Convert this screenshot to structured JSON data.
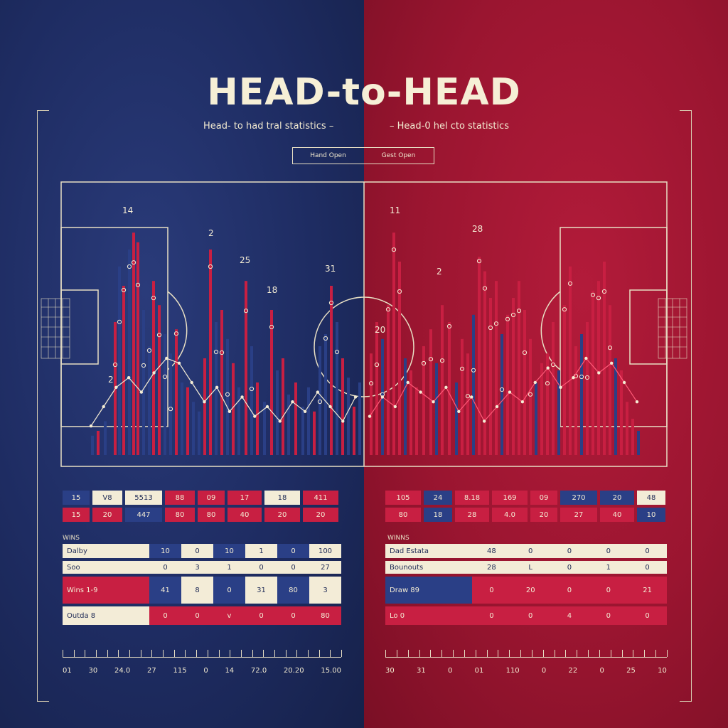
{
  "title": "HEAD-to-HEAD",
  "subtitle_left": "Head- to had tral statistics  –",
  "subtitle_right": "–  Head-0 hel cto statistics",
  "toggle": [
    "Hand Open",
    "Gest Open"
  ],
  "colors": {
    "blue": "#2a3f86",
    "red": "#c81f42",
    "cream": "#f3ecd7",
    "line": "#e8dfc4"
  },
  "chart_data": {
    "type": "bar",
    "title": "",
    "series": [
      {
        "name": "",
        "color": "#2a3f86"
      },
      {
        "name": "",
        "color": "#c81f42"
      }
    ],
    "labels_left": [
      "14",
      "2",
      "25",
      "18",
      "31",
      "2"
    ],
    "labels_right": [
      "11",
      "28",
      "2",
      "20"
    ],
    "left_bars": [
      {
        "x": 128,
        "h": 0.08,
        "c": "blue"
      },
      {
        "x": 136,
        "h": 0.1,
        "c": "red"
      },
      {
        "x": 146,
        "h": 0.14,
        "c": "blue"
      },
      {
        "x": 160,
        "h": 0.55,
        "c": "red"
      },
      {
        "x": 166,
        "h": 0.78,
        "c": "blue"
      },
      {
        "x": 172,
        "h": 0.7,
        "c": "red"
      },
      {
        "x": 180,
        "h": 0.85,
        "c": "blue"
      },
      {
        "x": 186,
        "h": 0.92,
        "c": "red"
      },
      {
        "x": 192,
        "h": 0.88,
        "c": "red"
      },
      {
        "x": 200,
        "h": 0.6,
        "c": "blue"
      },
      {
        "x": 208,
        "h": 0.45,
        "c": "blue"
      },
      {
        "x": 214,
        "h": 0.72,
        "c": "red"
      },
      {
        "x": 222,
        "h": 0.62,
        "c": "red"
      },
      {
        "x": 230,
        "h": 0.5,
        "c": "blue"
      },
      {
        "x": 238,
        "h": 0.42,
        "c": "blue"
      },
      {
        "x": 246,
        "h": 0.52,
        "c": "red"
      },
      {
        "x": 254,
        "h": 0.3,
        "c": "blue"
      },
      {
        "x": 262,
        "h": 0.28,
        "c": "red"
      },
      {
        "x": 270,
        "h": 0.22,
        "c": "blue"
      },
      {
        "x": 278,
        "h": 0.18,
        "c": "blue"
      },
      {
        "x": 286,
        "h": 0.4,
        "c": "red"
      },
      {
        "x": 294,
        "h": 0.85,
        "c": "red"
      },
      {
        "x": 302,
        "h": 0.55,
        "c": "blue"
      },
      {
        "x": 310,
        "h": 0.6,
        "c": "red"
      },
      {
        "x": 318,
        "h": 0.48,
        "c": "blue"
      },
      {
        "x": 326,
        "h": 0.38,
        "c": "red"
      },
      {
        "x": 334,
        "h": 0.28,
        "c": "blue"
      },
      {
        "x": 344,
        "h": 0.72,
        "c": "red"
      },
      {
        "x": 352,
        "h": 0.45,
        "c": "blue"
      },
      {
        "x": 360,
        "h": 0.3,
        "c": "red"
      },
      {
        "x": 370,
        "h": 0.22,
        "c": "blue"
      },
      {
        "x": 380,
        "h": 0.6,
        "c": "red"
      },
      {
        "x": 388,
        "h": 0.35,
        "c": "blue"
      },
      {
        "x": 396,
        "h": 0.4,
        "c": "red"
      },
      {
        "x": 404,
        "h": 0.25,
        "c": "blue"
      },
      {
        "x": 414,
        "h": 0.3,
        "c": "red"
      },
      {
        "x": 424,
        "h": 0.2,
        "c": "blue"
      },
      {
        "x": 432,
        "h": 0.28,
        "c": "blue"
      },
      {
        "x": 440,
        "h": 0.18,
        "c": "red"
      },
      {
        "x": 448,
        "h": 0.45,
        "c": "blue"
      },
      {
        "x": 456,
        "h": 0.5,
        "c": "blue"
      },
      {
        "x": 464,
        "h": 0.7,
        "c": "red"
      },
      {
        "x": 472,
        "h": 0.55,
        "c": "blue"
      },
      {
        "x": 480,
        "h": 0.4,
        "c": "red"
      },
      {
        "x": 488,
        "h": 0.32,
        "c": "blue"
      },
      {
        "x": 496,
        "h": 0.2,
        "c": "red"
      },
      {
        "x": 504,
        "h": 0.3,
        "c": "blue"
      }
    ],
    "right_bars": [
      {
        "x": 520,
        "h": 0.42,
        "c": "red"
      },
      {
        "x": 528,
        "h": 0.55,
        "c": "red"
      },
      {
        "x": 536,
        "h": 0.48,
        "c": "blue"
      },
      {
        "x": 544,
        "h": 0.62,
        "c": "red"
      },
      {
        "x": 552,
        "h": 0.92,
        "c": "red"
      },
      {
        "x": 560,
        "h": 0.8,
        "c": "red"
      },
      {
        "x": 568,
        "h": 0.4,
        "c": "blue"
      },
      {
        "x": 576,
        "h": 0.35,
        "c": "red"
      },
      {
        "x": 584,
        "h": 0.28,
        "c": "red"
      },
      {
        "x": 594,
        "h": 0.45,
        "c": "red"
      },
      {
        "x": 604,
        "h": 0.52,
        "c": "red"
      },
      {
        "x": 612,
        "h": 0.38,
        "c": "blue"
      },
      {
        "x": 620,
        "h": 0.62,
        "c": "red"
      },
      {
        "x": 630,
        "h": 0.55,
        "c": "red"
      },
      {
        "x": 640,
        "h": 0.3,
        "c": "blue"
      },
      {
        "x": 648,
        "h": 0.48,
        "c": "red"
      },
      {
        "x": 656,
        "h": 0.42,
        "c": "red"
      },
      {
        "x": 664,
        "h": 0.58,
        "c": "blue"
      },
      {
        "x": 672,
        "h": 0.82,
        "c": "red"
      },
      {
        "x": 680,
        "h": 0.76,
        "c": "red"
      },
      {
        "x": 688,
        "h": 0.65,
        "c": "red"
      },
      {
        "x": 696,
        "h": 0.72,
        "c": "red"
      },
      {
        "x": 704,
        "h": 0.5,
        "c": "blue"
      },
      {
        "x": 712,
        "h": 0.58,
        "c": "red"
      },
      {
        "x": 720,
        "h": 0.65,
        "c": "red"
      },
      {
        "x": 728,
        "h": 0.72,
        "c": "red"
      },
      {
        "x": 736,
        "h": 0.6,
        "c": "red"
      },
      {
        "x": 744,
        "h": 0.48,
        "c": "red"
      },
      {
        "x": 752,
        "h": 0.3,
        "c": "blue"
      },
      {
        "x": 760,
        "h": 0.38,
        "c": "red"
      },
      {
        "x": 768,
        "h": 0.42,
        "c": "red"
      },
      {
        "x": 776,
        "h": 0.55,
        "c": "red"
      },
      {
        "x": 784,
        "h": 0.35,
        "c": "blue"
      },
      {
        "x": 792,
        "h": 0.62,
        "c": "red"
      },
      {
        "x": 800,
        "h": 0.78,
        "c": "red"
      },
      {
        "x": 808,
        "h": 0.45,
        "c": "red"
      },
      {
        "x": 816,
        "h": 0.5,
        "c": "blue"
      },
      {
        "x": 824,
        "h": 0.55,
        "c": "red"
      },
      {
        "x": 832,
        "h": 0.68,
        "c": "red"
      },
      {
        "x": 840,
        "h": 0.72,
        "c": "red"
      },
      {
        "x": 848,
        "h": 0.8,
        "c": "red"
      },
      {
        "x": 856,
        "h": 0.62,
        "c": "red"
      },
      {
        "x": 864,
        "h": 0.4,
        "c": "blue"
      },
      {
        "x": 872,
        "h": 0.35,
        "c": "red"
      },
      {
        "x": 880,
        "h": 0.22,
        "c": "red"
      },
      {
        "x": 888,
        "h": 0.15,
        "c": "red"
      },
      {
        "x": 896,
        "h": 0.1,
        "c": "blue"
      }
    ],
    "line_left": [
      0.12,
      0.2,
      0.28,
      0.32,
      0.26,
      0.34,
      0.4,
      0.38,
      0.3,
      0.22,
      0.28,
      0.18,
      0.24,
      0.16,
      0.2,
      0.14,
      0.22,
      0.18,
      0.26,
      0.2,
      0.14,
      0.24
    ],
    "line_right": [
      0.16,
      0.24,
      0.2,
      0.3,
      0.26,
      0.22,
      0.28,
      0.18,
      0.24,
      0.14,
      0.2,
      0.26,
      0.22,
      0.3,
      0.36,
      0.28,
      0.32,
      0.4,
      0.34,
      0.38,
      0.3,
      0.22
    ]
  },
  "table_top_left": [
    [
      [
        "15",
        "blue"
      ],
      [
        "V8",
        "cream"
      ],
      [
        "5513",
        "cream"
      ],
      [
        "88",
        "red"
      ],
      [
        "09",
        "red"
      ],
      [
        "17",
        "red"
      ],
      [
        "18",
        "cream"
      ],
      [
        "411",
        "red"
      ]
    ],
    [
      [
        "15",
        "red"
      ],
      [
        "20",
        "red"
      ],
      [
        "447",
        "blue"
      ],
      [
        "80",
        "red"
      ],
      [
        "80",
        "red"
      ],
      [
        "40",
        "red"
      ],
      [
        "20",
        "red"
      ],
      [
        "20",
        "red"
      ]
    ]
  ],
  "table_top_right": [
    [
      [
        "105",
        "red"
      ],
      [
        "24",
        "blue"
      ],
      [
        "8.18",
        "red"
      ],
      [
        "169",
        "red"
      ],
      [
        "09",
        "red"
      ],
      [
        "270",
        "blue"
      ],
      [
        "20",
        "blue"
      ],
      [
        "48",
        "cream"
      ]
    ],
    [
      [
        "80",
        "red"
      ],
      [
        "18",
        "blue"
      ],
      [
        "28",
        "red"
      ],
      [
        "4.0",
        "red"
      ],
      [
        "20",
        "red"
      ],
      [
        "27",
        "red"
      ],
      [
        "40",
        "red"
      ],
      [
        "10",
        "blue"
      ]
    ]
  ],
  "stats_label_left": "WINS",
  "stats_label_right": "WINNS",
  "stats_left": [
    {
      "label": "Dalby",
      "cls": "cream",
      "vals": [
        "10",
        "0",
        "10",
        "1",
        "0",
        "100"
      ],
      "vcls": "blue"
    },
    {
      "label": "Soo",
      "cls": "cream",
      "vals": [
        "0",
        "3",
        "1",
        "0",
        "0",
        "27"
      ],
      "vcls": "cream"
    },
    {
      "label": "Wins  1-9",
      "cls": "red",
      "vals": [
        "41",
        "8",
        "0",
        "31",
        "80",
        "3"
      ],
      "vcls": "blue"
    },
    {
      "label": "Outda  8",
      "cls": "cream",
      "vals": [
        "0",
        "0",
        "v",
        "0",
        "0",
        "80"
      ],
      "vcls": "red"
    }
  ],
  "stats_right": [
    {
      "label": "Dad Estata",
      "cls": "cream",
      "vals": [
        "48",
        "0",
        "0",
        "0",
        "0"
      ],
      "vcls": "cream"
    },
    {
      "label": "Bounouts",
      "cls": "cream",
      "vals": [
        "28",
        "L",
        "0",
        "1",
        "0"
      ],
      "vcls": "cream"
    },
    {
      "label": "Draw  89",
      "cls": "blue",
      "vals": [
        "0",
        "20",
        "0",
        "0",
        "21"
      ],
      "vcls": "red"
    },
    {
      "label": "Lo  0",
      "cls": "red",
      "vals": [
        "0",
        "0",
        "4",
        "0",
        "0"
      ],
      "vcls": "red"
    }
  ],
  "axis_left": [
    "01",
    "30",
    "24.0",
    "27",
    "115",
    "0",
    "14",
    "72.0",
    "20.20",
    "15.00"
  ],
  "axis_right": [
    "30",
    "31",
    "0",
    "01",
    "110",
    "0",
    "22",
    "0",
    "25",
    "10"
  ]
}
